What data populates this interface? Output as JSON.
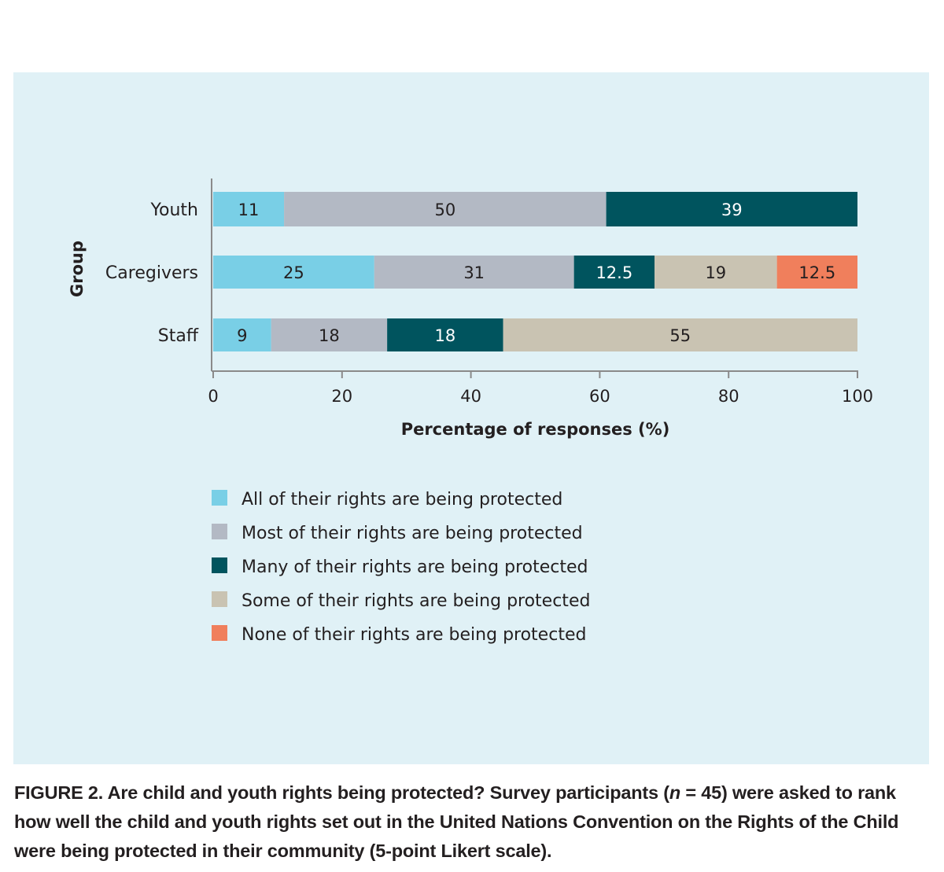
{
  "chart_data": {
    "type": "bar",
    "orientation": "horizontal",
    "stacked": true,
    "categories": [
      "Youth",
      "Caregivers",
      "Staff"
    ],
    "series": [
      {
        "name": "All of their rights are being protected",
        "color": "#79cfe6",
        "values": [
          11,
          25,
          9
        ]
      },
      {
        "name": "Most of their rights are being protected",
        "color": "#b3b9c4",
        "values": [
          50,
          31,
          18
        ]
      },
      {
        "name": "Many of their rights are being protected",
        "color": "#00545e",
        "values": [
          39,
          12.5,
          18
        ]
      },
      {
        "name": "Some of their rights are being protected",
        "color": "#c9c3b2",
        "values": [
          0,
          19,
          55
        ]
      },
      {
        "name": "None of their rights are being protected",
        "color": "#f07f5c",
        "values": [
          0,
          12.5,
          0
        ]
      }
    ],
    "xlabel": "Percentage of responses (%)",
    "ylabel": "Group",
    "xlim": [
      0,
      100
    ],
    "xticks": [
      0,
      20,
      40,
      60,
      80,
      100
    ],
    "grid": false,
    "legend": "bottom",
    "background": "#e0f1f6"
  },
  "caption": {
    "figure_label": "FIGURE 2.",
    "text_before_n": " Are child and youth rights being protected? Survey participants (",
    "n_symbol": "n",
    "text_after_n": " = 45) were asked to rank how well the child and youth rights set out in the United Nations Convention on the Rights of the Child were being protected in their community (5-point Likert scale)."
  }
}
